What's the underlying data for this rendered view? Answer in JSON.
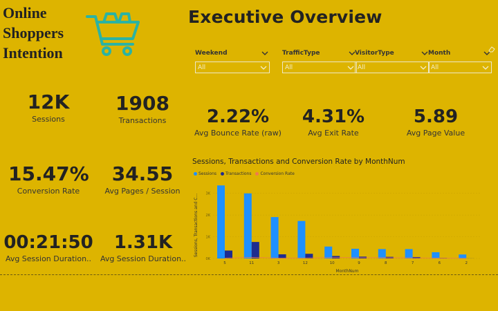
{
  "brand": {
    "line1": "Online",
    "line2": "Shoppers",
    "line3": "Intention"
  },
  "header": {
    "title": "Executive Overview"
  },
  "slicers": [
    {
      "label": "Weekend",
      "value": "All"
    },
    {
      "label": "TrafficType",
      "value": "All"
    },
    {
      "label": "VisitorType",
      "value": "All"
    },
    {
      "label": "Month",
      "value": "All"
    }
  ],
  "kpis": {
    "sessions": {
      "value": "12K",
      "label": "Sessions"
    },
    "transactions": {
      "value": "1908",
      "label": "Transactions"
    },
    "bounce": {
      "value": "2.22%",
      "label": "Avg Bounce Rate (raw)"
    },
    "exit": {
      "value": "4.31%",
      "label": "Avg Exit Rate"
    },
    "page_value": {
      "value": "5.89",
      "label": "Avg Page Value"
    },
    "conversion": {
      "value": "15.47%",
      "label": "Conversion Rate"
    },
    "pages_session": {
      "value": "34.55",
      "label": "Avg Pages / Session"
    },
    "duration1": {
      "value": "00:21:50",
      "label": "Avg Session Duration.."
    },
    "duration2": {
      "value": "1.31K",
      "label": "Avg Session Duration.."
    }
  },
  "colors": {
    "background": "#DDB400",
    "sessions": "#1E90FF",
    "transactions": "#1F2C8F",
    "conversion": "#F07850",
    "cart": "#2BB3A3"
  },
  "chart_data": {
    "type": "bar",
    "title": "Sessions, Transactions and Conversion Rate by MonthNum",
    "xlabel": "MonthNum",
    "ylabel": "Sessions, Transactions and C...",
    "legend": [
      "Sessions",
      "Transactions",
      "Conversion Rate"
    ],
    "categories": [
      "5",
      "11",
      "3",
      "12",
      "10",
      "9",
      "8",
      "7",
      "6",
      "2"
    ],
    "y_ticks": [
      "3K",
      "2K",
      "1K",
      "0K"
    ],
    "ylim": [
      0,
      3500
    ],
    "series": [
      {
        "name": "Sessions",
        "values": [
          3364,
          2998,
          1907,
          1727,
          549,
          448,
          433,
          432,
          288,
          184
        ]
      },
      {
        "name": "Transactions",
        "values": [
          365,
          760,
          192,
          216,
          115,
          86,
          76,
          66,
          29,
          3
        ]
      },
      {
        "name": "Conversion Rate",
        "values": [
          0.11,
          0.25,
          0.1,
          0.13,
          0.21,
          0.19,
          0.18,
          0.15,
          0.1,
          0.02
        ]
      }
    ]
  }
}
